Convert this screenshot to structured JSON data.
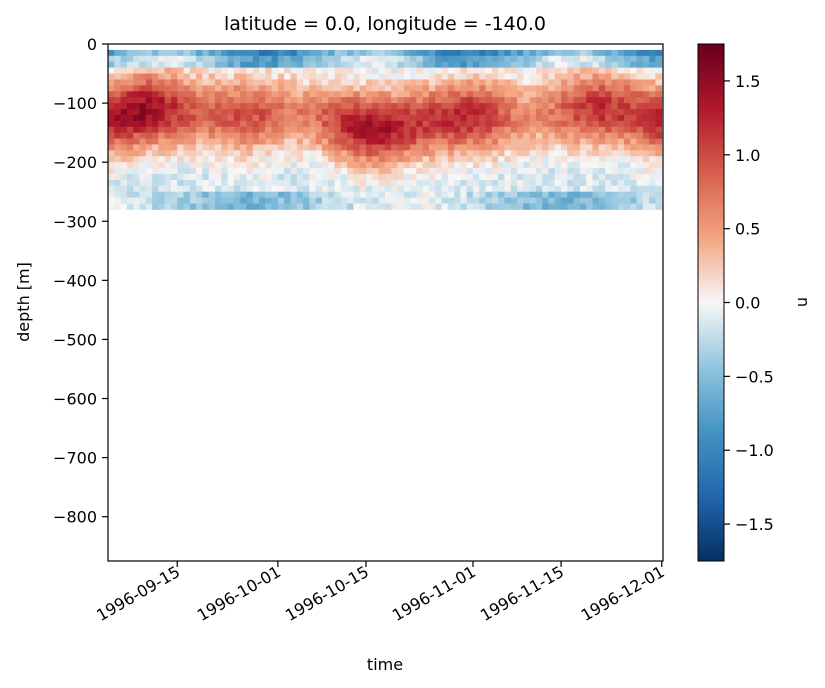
{
  "chart_data": {
    "type": "heatmap",
    "title": "latitude = 0.0, longitude = -140.0",
    "xlabel": "time",
    "ylabel": "depth [m]",
    "x_range": [
      "1996-09-04",
      "1996-12-01"
    ],
    "x_ticks": [
      "1996-09-15",
      "1996-10-01",
      "1996-10-15",
      "1996-11-01",
      "1996-11-15",
      "1996-12-01"
    ],
    "ylim": [
      -875,
      0
    ],
    "y_ticks": [
      0,
      -100,
      -200,
      -300,
      -400,
      -500,
      -600,
      -700,
      -800
    ],
    "y_tick_labels": [
      "0",
      "−100",
      "−200",
      "−300",
      "−400",
      "−500",
      "−600",
      "−700",
      "−800"
    ],
    "data_depth_range": [
      -280,
      -10
    ],
    "colorbar": {
      "label": "u",
      "colormap": "RdBu_r",
      "vmin": -1.75,
      "vmax": 1.75,
      "ticks": [
        1.5,
        1.0,
        0.5,
        0.0,
        -0.5,
        -1.0,
        -1.5
      ],
      "tick_labels": [
        "1.5",
        "1.0",
        "0.5",
        "0.0",
        "−0.5",
        "−1.0",
        "−1.5"
      ]
    },
    "grid": false
  }
}
